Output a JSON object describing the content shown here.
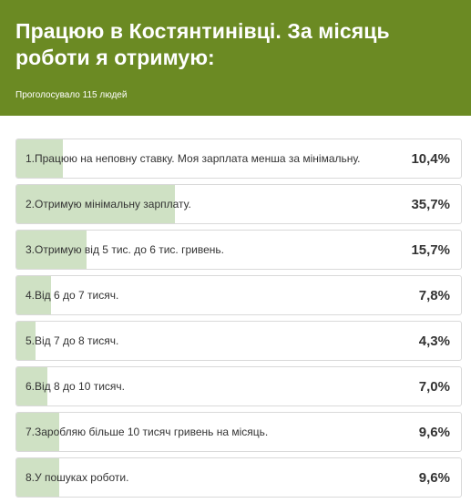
{
  "header": {
    "title": "Працюю в Костянтинівці. За місяць роботи я отримую:",
    "votes_text": "Проголосувало 115 людей",
    "background_color": "#6b8a23"
  },
  "bar_color": "#cfe1c4",
  "options": [
    {
      "label": "1.Працюю на неповну ставку. Моя зарплата менша за мінімальну.",
      "percent_text": "10,4%",
      "percent": 10.4
    },
    {
      "label": "2.Отримую мінімальну зарплату.",
      "percent_text": "35,7%",
      "percent": 35.7
    },
    {
      "label": "3.Отримую від 5 тис. до 6 тис. гривень.",
      "percent_text": "15,7%",
      "percent": 15.7
    },
    {
      "label": "4.Від 6 до 7 тисяч.",
      "percent_text": "7,8%",
      "percent": 7.8
    },
    {
      "label": "5.Від 7 до 8 тисяч.",
      "percent_text": "4,3%",
      "percent": 4.3
    },
    {
      "label": "6.Від 8 до 10 тисяч.",
      "percent_text": "7,0%",
      "percent": 7.0
    },
    {
      "label": "7.Заробляю більше 10 тисяч гривень на місяць.",
      "percent_text": "9,6%",
      "percent": 9.6
    },
    {
      "label": "8.У пошуках роботи.",
      "percent_text": "9,6%",
      "percent": 9.6
    }
  ]
}
